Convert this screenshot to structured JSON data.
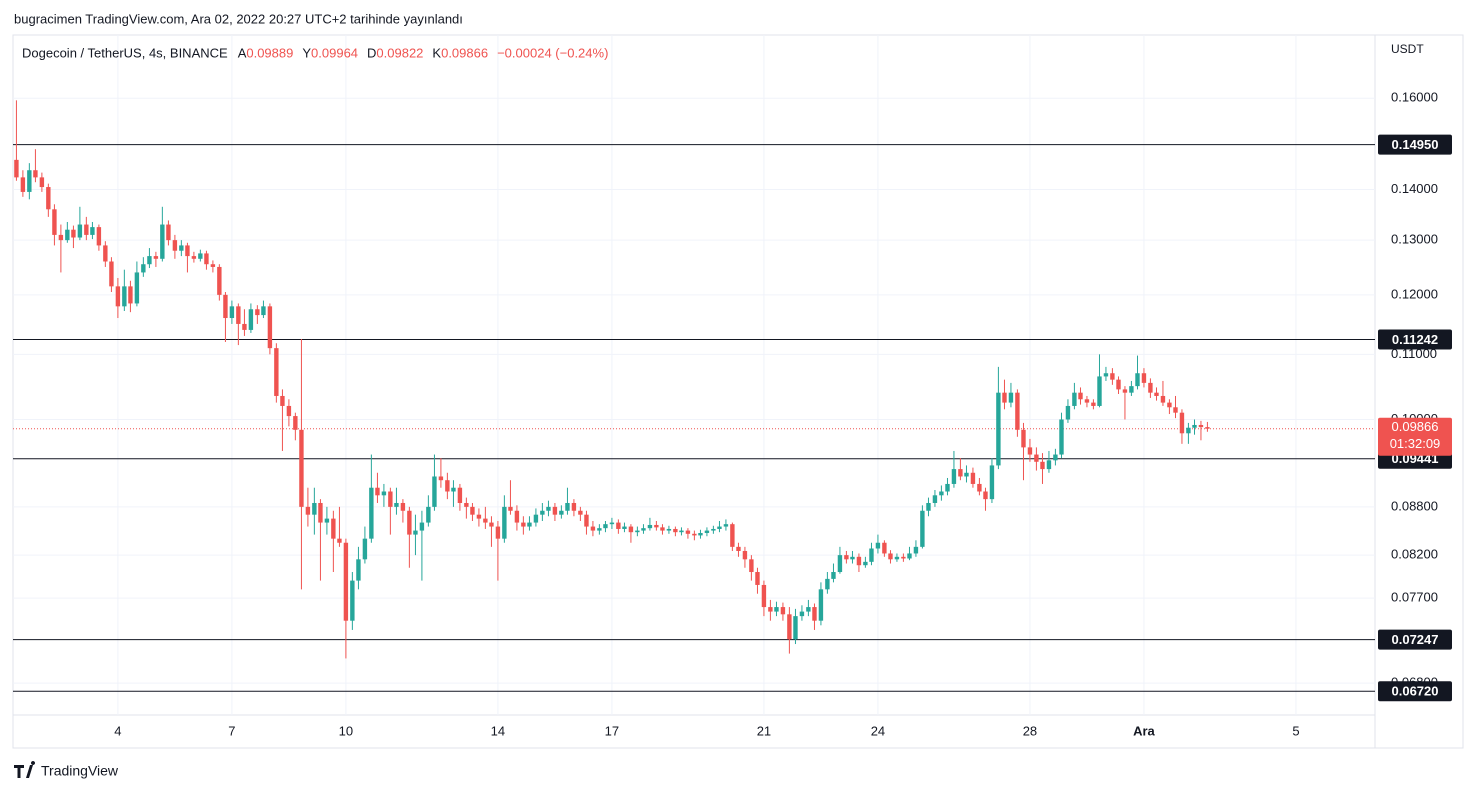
{
  "chart_data": {
    "type": "candlestick",
    "published": "bugracimen TradingView.com, Ara 02, 2022 20:27 UTC+2 tarihinde yayınlandı",
    "symbol": "Dogecoin / TetherUS, 4s, BINANCE",
    "ohlc_labels": [
      "A",
      "Y",
      "D",
      "K"
    ],
    "change": "−0.00024 (−0.24%)",
    "currency": "USDT",
    "brand": "TradingView",
    "up_color": "#26a69a",
    "down_color": "#ef5350",
    "log_scale": true,
    "grid": true,
    "ylim": [
      0.0649,
      0.1755
    ],
    "yticks": [
      {
        "value": 0.16,
        "label": "0.16000"
      },
      {
        "value": 0.14,
        "label": "0.14000"
      },
      {
        "value": 0.13,
        "label": "0.13000"
      },
      {
        "value": 0.12,
        "label": "0.12000"
      },
      {
        "value": 0.11,
        "label": "0.11000"
      },
      {
        "value": 0.1,
        "label": "0.10000"
      },
      {
        "value": 0.088,
        "label": "0.08800"
      },
      {
        "value": 0.082,
        "label": "0.08200"
      },
      {
        "value": 0.077,
        "label": "0.07700"
      },
      {
        "value": 0.068,
        "label": "0.06800"
      }
    ],
    "xlim": [
      1.24,
      37.08
    ],
    "xticks": [
      4,
      7,
      10,
      14,
      17,
      21,
      24,
      28,
      {
        "value": 31,
        "label": "Ara"
      },
      {
        "value": 35,
        "label": "5"
      }
    ],
    "levels": [
      {
        "value": 0.1495,
        "label": "0.14950"
      },
      {
        "value": 0.11242,
        "label": "0.11242"
      },
      {
        "value": 0.09441,
        "label": "0.09441"
      },
      {
        "value": 0.07247,
        "label": "0.07247"
      },
      {
        "value": 0.0672,
        "label": "0.06720"
      }
    ],
    "price_line": {
      "value": 0.09866,
      "label": "0.09866",
      "countdown": "01:32:09"
    },
    "x": [
      1.33,
      1.5,
      1.67,
      1.83,
      2,
      2.17,
      2.33,
      2.5,
      2.67,
      2.83,
      3,
      3.17,
      3.33,
      3.5,
      3.67,
      3.83,
      4,
      4.17,
      4.33,
      4.5,
      4.67,
      4.83,
      5,
      5.17,
      5.33,
      5.5,
      5.67,
      5.83,
      6,
      6.17,
      6.33,
      6.5,
      6.67,
      6.83,
      7,
      7.17,
      7.33,
      7.5,
      7.67,
      7.83,
      8,
      8.17,
      8.33,
      8.5,
      8.67,
      8.83,
      9,
      9.17,
      9.33,
      9.5,
      9.67,
      9.83,
      10,
      10.17,
      10.33,
      10.5,
      10.67,
      10.83,
      11,
      11.17,
      11.33,
      11.5,
      11.67,
      11.83,
      12,
      12.17,
      12.33,
      12.5,
      12.67,
      12.83,
      13,
      13.17,
      13.33,
      13.5,
      13.67,
      13.83,
      14,
      14.17,
      14.33,
      14.5,
      14.67,
      14.83,
      15,
      15.17,
      15.33,
      15.5,
      15.67,
      15.83,
      16,
      16.17,
      16.33,
      16.5,
      16.67,
      16.83,
      17,
      17.17,
      17.33,
      17.5,
      17.67,
      17.83,
      18,
      18.17,
      18.33,
      18.5,
      18.67,
      18.83,
      19,
      19.17,
      19.33,
      19.5,
      19.67,
      19.83,
      20,
      20.17,
      20.33,
      20.5,
      20.67,
      20.83,
      21,
      21.17,
      21.33,
      21.5,
      21.67,
      21.83,
      22,
      22.17,
      22.33,
      22.5,
      22.67,
      22.83,
      23,
      23.17,
      23.33,
      23.5,
      23.67,
      23.83,
      24,
      24.17,
      24.33,
      24.5,
      24.67,
      24.83,
      25,
      25.17,
      25.33,
      25.5,
      25.67,
      25.83,
      26,
      26.17,
      26.33,
      26.5,
      26.67,
      26.83,
      27,
      27.17,
      27.33,
      27.5,
      27.67,
      27.83,
      28,
      28.17,
      28.33,
      28.5,
      28.67,
      28.83,
      29,
      29.17,
      29.33,
      29.5,
      29.67,
      29.83,
      30,
      30.17,
      30.33,
      30.5,
      30.67,
      30.83,
      31,
      31.17,
      31.33,
      31.5,
      31.67,
      31.83,
      32,
      32.17,
      32.33,
      32.5,
      32.67
    ],
    "ohlc": [
      [
        0.1462,
        0.1595,
        0.1418,
        0.1425
      ],
      [
        0.1425,
        0.144,
        0.1385,
        0.1395
      ],
      [
        0.1395,
        0.1455,
        0.138,
        0.144
      ],
      [
        0.144,
        0.1485,
        0.1415,
        0.1425
      ],
      [
        0.1425,
        0.1435,
        0.1395,
        0.1405
      ],
      [
        0.1405,
        0.1412,
        0.1345,
        0.136
      ],
      [
        0.136,
        0.137,
        0.129,
        0.131
      ],
      [
        0.131,
        0.133,
        0.124,
        0.13
      ],
      [
        0.13,
        0.1335,
        0.1295,
        0.132
      ],
      [
        0.132,
        0.1328,
        0.1285,
        0.1305
      ],
      [
        0.1305,
        0.1365,
        0.13,
        0.133
      ],
      [
        0.133,
        0.1345,
        0.13,
        0.131
      ],
      [
        0.131,
        0.1335,
        0.1302,
        0.1325
      ],
      [
        0.1325,
        0.133,
        0.128,
        0.129
      ],
      [
        0.129,
        0.1298,
        0.125,
        0.126
      ],
      [
        0.126,
        0.1268,
        0.1205,
        0.1215
      ],
      [
        0.1215,
        0.123,
        0.116,
        0.118
      ],
      [
        0.118,
        0.1245,
        0.1172,
        0.1215
      ],
      [
        0.1215,
        0.1225,
        0.117,
        0.1185
      ],
      [
        0.1185,
        0.126,
        0.118,
        0.124
      ],
      [
        0.124,
        0.1268,
        0.1232,
        0.1255
      ],
      [
        0.1255,
        0.1285,
        0.1248,
        0.127
      ],
      [
        0.127,
        0.1278,
        0.125,
        0.1265
      ],
      [
        0.1265,
        0.1365,
        0.126,
        0.133
      ],
      [
        0.133,
        0.1338,
        0.129,
        0.13
      ],
      [
        0.13,
        0.131,
        0.1265,
        0.128
      ],
      [
        0.128,
        0.13,
        0.127,
        0.129
      ],
      [
        0.129,
        0.1295,
        0.124,
        0.127
      ],
      [
        0.127,
        0.1278,
        0.1258,
        0.1265
      ],
      [
        0.1265,
        0.1282,
        0.126,
        0.1275
      ],
      [
        0.1275,
        0.128,
        0.1245,
        0.1255
      ],
      [
        0.1255,
        0.1262,
        0.124,
        0.125
      ],
      [
        0.125,
        0.1255,
        0.119,
        0.12
      ],
      [
        0.12,
        0.1205,
        0.112,
        0.116
      ],
      [
        0.116,
        0.119,
        0.115,
        0.118
      ],
      [
        0.118,
        0.1185,
        0.1115,
        0.115
      ],
      [
        0.115,
        0.1175,
        0.113,
        0.114
      ],
      [
        0.114,
        0.1185,
        0.1135,
        0.1175
      ],
      [
        0.1175,
        0.1182,
        0.115,
        0.1165
      ],
      [
        0.1165,
        0.119,
        0.116,
        0.118
      ],
      [
        0.118,
        0.1185,
        0.11,
        0.111
      ],
      [
        0.111,
        0.1118,
        0.1025,
        0.1035
      ],
      [
        0.1035,
        0.1045,
        0.0955,
        0.102
      ],
      [
        0.102,
        0.103,
        0.099,
        0.1005
      ],
      [
        0.1005,
        0.101,
        0.097,
        0.0985
      ],
      [
        0.0985,
        0.1125,
        0.078,
        0.088
      ],
      [
        0.088,
        0.0905,
        0.0855,
        0.087
      ],
      [
        0.087,
        0.0905,
        0.0845,
        0.0885
      ],
      [
        0.0885,
        0.089,
        0.079,
        0.086
      ],
      [
        0.086,
        0.088,
        0.0845,
        0.0865
      ],
      [
        0.0865,
        0.0875,
        0.08,
        0.084
      ],
      [
        0.084,
        0.088,
        0.083,
        0.0835
      ],
      [
        0.0835,
        0.084,
        0.0705,
        0.0745
      ],
      [
        0.0745,
        0.08,
        0.0735,
        0.079
      ],
      [
        0.079,
        0.083,
        0.078,
        0.0815
      ],
      [
        0.0815,
        0.0855,
        0.081,
        0.084
      ],
      [
        0.084,
        0.095,
        0.0835,
        0.0905
      ],
      [
        0.0905,
        0.0925,
        0.0885,
        0.0895
      ],
      [
        0.0895,
        0.091,
        0.088,
        0.09
      ],
      [
        0.09,
        0.0905,
        0.0845,
        0.088
      ],
      [
        0.088,
        0.0905,
        0.087,
        0.0885
      ],
      [
        0.0885,
        0.089,
        0.086,
        0.0875
      ],
      [
        0.0875,
        0.088,
        0.0805,
        0.0845
      ],
      [
        0.0845,
        0.087,
        0.082,
        0.085
      ],
      [
        0.085,
        0.0875,
        0.079,
        0.086
      ],
      [
        0.086,
        0.0895,
        0.0855,
        0.088
      ],
      [
        0.088,
        0.095,
        0.0875,
        0.092
      ],
      [
        0.092,
        0.0945,
        0.0905,
        0.0915
      ],
      [
        0.0915,
        0.0925,
        0.089,
        0.09
      ],
      [
        0.09,
        0.0915,
        0.088,
        0.0905
      ],
      [
        0.0905,
        0.091,
        0.0875,
        0.0885
      ],
      [
        0.0885,
        0.0892,
        0.0865,
        0.088
      ],
      [
        0.088,
        0.0885,
        0.0862,
        0.087
      ],
      [
        0.087,
        0.0878,
        0.0855,
        0.0865
      ],
      [
        0.0865,
        0.088,
        0.0852,
        0.086
      ],
      [
        0.086,
        0.0868,
        0.083,
        0.0855
      ],
      [
        0.0855,
        0.0862,
        0.079,
        0.084
      ],
      [
        0.084,
        0.0895,
        0.0835,
        0.088
      ],
      [
        0.088,
        0.0915,
        0.087,
        0.0875
      ],
      [
        0.0875,
        0.0882,
        0.085,
        0.086
      ],
      [
        0.086,
        0.0868,
        0.0845,
        0.0855
      ],
      [
        0.0855,
        0.0868,
        0.085,
        0.086
      ],
      [
        0.086,
        0.0878,
        0.0855,
        0.087
      ],
      [
        0.087,
        0.0885,
        0.0862,
        0.0875
      ],
      [
        0.0875,
        0.0888,
        0.0868,
        0.088
      ],
      [
        0.088,
        0.0885,
        0.0862,
        0.087
      ],
      [
        0.087,
        0.0882,
        0.0865,
        0.0875
      ],
      [
        0.0875,
        0.0905,
        0.087,
        0.0885
      ],
      [
        0.0885,
        0.089,
        0.0868,
        0.0875
      ],
      [
        0.0875,
        0.088,
        0.0862,
        0.087
      ],
      [
        0.087,
        0.0875,
        0.0845,
        0.0855
      ],
      [
        0.0855,
        0.0862,
        0.0843,
        0.085
      ],
      [
        0.085,
        0.0858,
        0.0845,
        0.0853
      ],
      [
        0.0853,
        0.0862,
        0.0848,
        0.0858
      ],
      [
        0.0858,
        0.0866,
        0.0852,
        0.086
      ],
      [
        0.086,
        0.0864,
        0.0846,
        0.0852
      ],
      [
        0.0852,
        0.086,
        0.0848,
        0.0855
      ],
      [
        0.0855,
        0.0858,
        0.0835,
        0.0848
      ],
      [
        0.0848,
        0.0855,
        0.0843,
        0.085
      ],
      [
        0.085,
        0.0858,
        0.0846,
        0.0853
      ],
      [
        0.0853,
        0.0866,
        0.085,
        0.0857
      ],
      [
        0.0857,
        0.0862,
        0.085,
        0.0854
      ],
      [
        0.0854,
        0.0858,
        0.0845,
        0.085
      ],
      [
        0.085,
        0.0856,
        0.0846,
        0.0852
      ],
      [
        0.0852,
        0.0855,
        0.0843,
        0.0848
      ],
      [
        0.0848,
        0.0854,
        0.0844,
        0.085
      ],
      [
        0.085,
        0.0853,
        0.084,
        0.0846
      ],
      [
        0.0846,
        0.085,
        0.0838,
        0.0844
      ],
      [
        0.0844,
        0.0851,
        0.084,
        0.0847
      ],
      [
        0.0847,
        0.0854,
        0.0843,
        0.085
      ],
      [
        0.085,
        0.0856,
        0.0846,
        0.0852
      ],
      [
        0.0852,
        0.0862,
        0.0848,
        0.0855
      ],
      [
        0.0855,
        0.0864,
        0.085,
        0.0858
      ],
      [
        0.0858,
        0.086,
        0.0825,
        0.083
      ],
      [
        0.083,
        0.0835,
        0.0818,
        0.0825
      ],
      [
        0.0825,
        0.083,
        0.0805,
        0.0815
      ],
      [
        0.0815,
        0.082,
        0.079,
        0.08
      ],
      [
        0.08,
        0.0805,
        0.0775,
        0.0785
      ],
      [
        0.0785,
        0.079,
        0.075,
        0.076
      ],
      [
        0.076,
        0.0768,
        0.0745,
        0.0755
      ],
      [
        0.0755,
        0.0766,
        0.075,
        0.076
      ],
      [
        0.076,
        0.0765,
        0.0745,
        0.0752
      ],
      [
        0.0752,
        0.076,
        0.071,
        0.0725
      ],
      [
        0.0725,
        0.0758,
        0.072,
        0.075
      ],
      [
        0.075,
        0.0762,
        0.0745,
        0.0755
      ],
      [
        0.0755,
        0.0768,
        0.075,
        0.076
      ],
      [
        0.076,
        0.0764,
        0.0735,
        0.0745
      ],
      [
        0.0745,
        0.0788,
        0.074,
        0.078
      ],
      [
        0.078,
        0.08,
        0.0775,
        0.0792
      ],
      [
        0.0792,
        0.081,
        0.0788,
        0.08
      ],
      [
        0.08,
        0.083,
        0.0798,
        0.082
      ],
      [
        0.082,
        0.0825,
        0.081,
        0.0815
      ],
      [
        0.0815,
        0.0825,
        0.081,
        0.0818
      ],
      [
        0.0818,
        0.0822,
        0.08,
        0.0808
      ],
      [
        0.0808,
        0.0818,
        0.0805,
        0.0812
      ],
      [
        0.0812,
        0.0835,
        0.0808,
        0.0828
      ],
      [
        0.0828,
        0.0845,
        0.0822,
        0.0835
      ],
      [
        0.0835,
        0.0838,
        0.0818,
        0.0822
      ],
      [
        0.0822,
        0.0826,
        0.081,
        0.0815
      ],
      [
        0.0815,
        0.0822,
        0.0812,
        0.0818
      ],
      [
        0.0818,
        0.0822,
        0.0812,
        0.0816
      ],
      [
        0.0816,
        0.083,
        0.0814,
        0.0822
      ],
      [
        0.0822,
        0.0838,
        0.0818,
        0.083
      ],
      [
        0.083,
        0.0882,
        0.0828,
        0.0875
      ],
      [
        0.0875,
        0.0892,
        0.0868,
        0.0885
      ],
      [
        0.0885,
        0.0902,
        0.088,
        0.0895
      ],
      [
        0.0895,
        0.0908,
        0.0888,
        0.09
      ],
      [
        0.09,
        0.0918,
        0.0895,
        0.091
      ],
      [
        0.091,
        0.0955,
        0.0905,
        0.093
      ],
      [
        0.093,
        0.0945,
        0.0915,
        0.092
      ],
      [
        0.092,
        0.0935,
        0.0912,
        0.0925
      ],
      [
        0.0925,
        0.0932,
        0.0905,
        0.091
      ],
      [
        0.091,
        0.0918,
        0.0895,
        0.09
      ],
      [
        0.09,
        0.0905,
        0.0875,
        0.089
      ],
      [
        0.089,
        0.0945,
        0.0885,
        0.0935
      ],
      [
        0.0935,
        0.108,
        0.093,
        0.104
      ],
      [
        0.104,
        0.106,
        0.1015,
        0.1025
      ],
      [
        0.1025,
        0.1055,
        0.1018,
        0.104
      ],
      [
        0.104,
        0.1045,
        0.0975,
        0.0985
      ],
      [
        0.0985,
        0.0995,
        0.0915,
        0.096
      ],
      [
        0.096,
        0.0972,
        0.094,
        0.095
      ],
      [
        0.095,
        0.096,
        0.0928,
        0.094
      ],
      [
        0.094,
        0.0952,
        0.091,
        0.093
      ],
      [
        0.093,
        0.0955,
        0.0925,
        0.0942
      ],
      [
        0.0942,
        0.0958,
        0.0935,
        0.095
      ],
      [
        0.095,
        0.101,
        0.0945,
        0.1
      ],
      [
        0.1,
        0.103,
        0.0995,
        0.102
      ],
      [
        0.102,
        0.1055,
        0.1015,
        0.104
      ],
      [
        0.104,
        0.1048,
        0.1022,
        0.103
      ],
      [
        0.103,
        0.1035,
        0.1018,
        0.1025
      ],
      [
        0.1025,
        0.103,
        0.1015,
        0.102
      ],
      [
        0.102,
        0.11,
        0.1018,
        0.1065
      ],
      [
        0.1065,
        0.108,
        0.1058,
        0.107
      ],
      [
        0.107,
        0.1078,
        0.1052,
        0.106
      ],
      [
        0.106,
        0.1065,
        0.1038,
        0.1045
      ],
      [
        0.1045,
        0.105,
        0.1,
        0.104
      ],
      [
        0.104,
        0.1058,
        0.1035,
        0.105
      ],
      [
        0.105,
        0.1098,
        0.1045,
        0.107
      ],
      [
        0.107,
        0.1078,
        0.1048,
        0.1055
      ],
      [
        0.1055,
        0.1062,
        0.1032,
        0.104
      ],
      [
        0.104,
        0.1048,
        0.1028,
        0.1035
      ],
      [
        0.1035,
        0.1058,
        0.102,
        0.1025
      ],
      [
        0.1025,
        0.103,
        0.1008,
        0.1018
      ],
      [
        0.1018,
        0.1035,
        0.1002,
        0.101
      ],
      [
        0.101,
        0.1015,
        0.0965,
        0.098
      ],
      [
        0.098,
        0.0995,
        0.0965,
        0.0988
      ],
      [
        0.0988,
        0.1,
        0.0978,
        0.0992
      ],
      [
        0.0992,
        0.0998,
        0.097,
        0.09889
      ],
      [
        0.09889,
        0.09964,
        0.09822,
        0.09866
      ]
    ]
  }
}
